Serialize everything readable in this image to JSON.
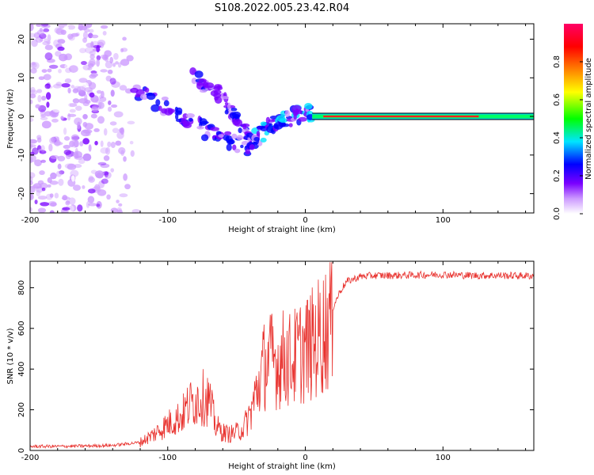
{
  "title": "S108.2022.005.23.42.R04",
  "chart_data": [
    {
      "type": "heatmap",
      "xlabel": "Height of straight line (km)",
      "ylabel": "Frequency (Hz)",
      "xlim": [
        -200,
        166
      ],
      "ylim": [
        -25,
        24
      ],
      "x_ticks": [
        -200,
        -100,
        0,
        100
      ],
      "y_ticks": [
        -20,
        -10,
        0,
        10,
        20
      ],
      "colorbar": {
        "label": "Normalized spectral amplitude",
        "range": [
          0,
          1
        ],
        "ticks": [
          "0.0",
          "0.2",
          "0.4",
          "0.6",
          "0.8"
        ],
        "colors": [
          "#ffffff",
          "#cc99ff",
          "#7a00ff",
          "#0000ff",
          "#00e5ff",
          "#00ff00",
          "#ffff00",
          "#ff8000",
          "#ff0000",
          "#ff0066"
        ]
      },
      "features": [
        {
          "name": "diffuse noise",
          "x_range": [
            -200,
            -120
          ],
          "f_range": [
            -25,
            24
          ],
          "amplitude": 0.08
        },
        {
          "name": "descending branch A",
          "x": [
            -125,
            -100,
            -80,
            -60,
            -40
          ],
          "f": [
            7,
            2,
            -2,
            -6,
            -8
          ],
          "amplitude": 0.3
        },
        {
          "name": "descending branch B",
          "x": [
            -80,
            -65,
            -50,
            -38
          ],
          "f": [
            10,
            6,
            0,
            -7
          ],
          "amplitude": 0.3
        },
        {
          "name": "ascending branch",
          "x": [
            -40,
            -25,
            -10,
            5
          ],
          "f": [
            -7,
            -2,
            0,
            1
          ],
          "amplitude": 0.35
        },
        {
          "name": "carrier line",
          "x_range": [
            5,
            166
          ],
          "f": 0,
          "amplitude": 0.85
        }
      ]
    },
    {
      "type": "line",
      "xlabel": "Height of straight line (km)",
      "ylabel": "SNR (10 * v/v)",
      "xlim": [
        -200,
        166
      ],
      "ylim": [
        0,
        930
      ],
      "x_ticks": [
        -200,
        -100,
        0,
        100
      ],
      "y_ticks": [
        0,
        200,
        400,
        600,
        800
      ],
      "color": "#e8302c",
      "series": [
        {
          "x": [
            -200,
            -180,
            -160,
            -140,
            -120,
            -110,
            -100,
            -90,
            -85,
            -80,
            -75,
            -70,
            -65,
            -60,
            -55,
            -50,
            -45,
            -40,
            -35,
            -30,
            -25,
            -20,
            -15,
            -10,
            -5,
            0,
            5,
            10,
            15,
            20,
            25,
            30,
            40,
            50,
            60,
            80,
            100,
            120,
            140,
            166
          ],
          "y": [
            20,
            20,
            22,
            25,
            40,
            80,
            130,
            170,
            220,
            250,
            260,
            250,
            120,
            90,
            80,
            90,
            110,
            180,
            300,
            420,
            450,
            430,
            460,
            440,
            480,
            500,
            520,
            560,
            600,
            700,
            780,
            830,
            855,
            860,
            860,
            862,
            865,
            860,
            860,
            858
          ]
        }
      ]
    }
  ]
}
